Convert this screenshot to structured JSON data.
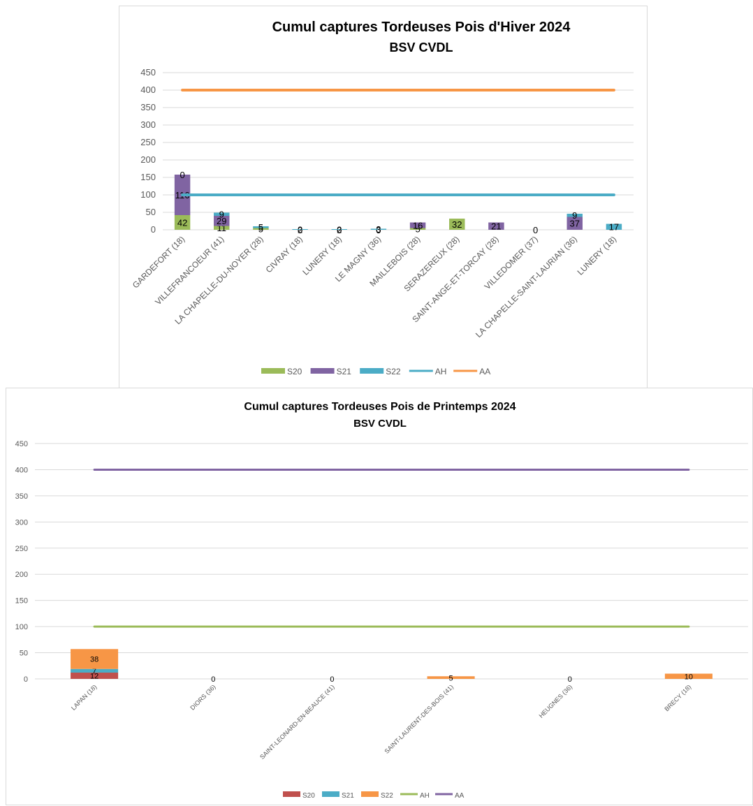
{
  "charts": [
    {
      "type": "bar",
      "stacked": true,
      "title": "Cumul captures Tordeuses Pois d'Hiver 2024",
      "subtitle": "BSV CVDL",
      "ylim": [
        0,
        450
      ],
      "yticks": [
        0,
        50,
        100,
        150,
        200,
        250,
        300,
        350,
        400,
        450
      ],
      "grid": true,
      "legend_position": "bottom",
      "categories": [
        "GARDEFORT (18)",
        "VILLEFRANCOEUR (41)",
        "LA CHAPELLE-DU-NOYER (28)",
        "CIVRAY (18)",
        "LUNERY (18)",
        "LE MAGNY (36)",
        "MAILLEBOIS (28)",
        "SERAZEREUX (28)",
        "SAINT-ANGE-ET-TORCAY (28)",
        "VILLEDOMER (37)",
        "LA CHAPELLE-SAINT-LAURIAN (36)",
        "LUNERY (18)"
      ],
      "series": [
        {
          "name": "S20",
          "color": "#9bbb59",
          "values": [
            42,
            11,
            5,
            0,
            0,
            0,
            5,
            32,
            null,
            0,
            null,
            null
          ]
        },
        {
          "name": "S21",
          "color": "#8064a2",
          "values": [
            116,
            29,
            null,
            0,
            0,
            0,
            16,
            null,
            21,
            null,
            37,
            null
          ]
        },
        {
          "name": "S22",
          "color": "#4bacc6",
          "values": [
            0,
            9,
            5,
            2,
            2,
            3,
            null,
            null,
            null,
            null,
            9,
            17
          ]
        }
      ],
      "lines": [
        {
          "name": "AH",
          "color": "#4bacc6",
          "value": 100
        },
        {
          "name": "AA",
          "color": "#f79646",
          "value": 400
        }
      ]
    },
    {
      "type": "bar",
      "stacked": true,
      "title": "Cumul captures Tordeuses Pois de Printemps 2024",
      "subtitle": "BSV CVDL",
      "ylim": [
        0,
        450
      ],
      "yticks": [
        0,
        50,
        100,
        150,
        200,
        250,
        300,
        350,
        400,
        450
      ],
      "grid": true,
      "legend_position": "bottom",
      "categories": [
        "LAPAN (18)",
        "DIORS (36)",
        "SAINT-LEONARD-EN-BEAUCE (41)",
        "SAINT-LAURENT-DES-BOIS (41)",
        "HEUGNES (36)",
        "BRECY (18)"
      ],
      "series": [
        {
          "name": "S20",
          "color": "#c0504d",
          "values": [
            12,
            0,
            0,
            null,
            0,
            null
          ]
        },
        {
          "name": "S21",
          "color": "#4bacc6",
          "values": [
            7,
            null,
            null,
            null,
            null,
            null
          ]
        },
        {
          "name": "S22",
          "color": "#f79646",
          "values": [
            38,
            null,
            null,
            5,
            null,
            10
          ]
        }
      ],
      "lines": [
        {
          "name": "AH",
          "color": "#9bbb59",
          "value": 100
        },
        {
          "name": "AA",
          "color": "#8064a2",
          "value": 400
        }
      ]
    }
  ]
}
